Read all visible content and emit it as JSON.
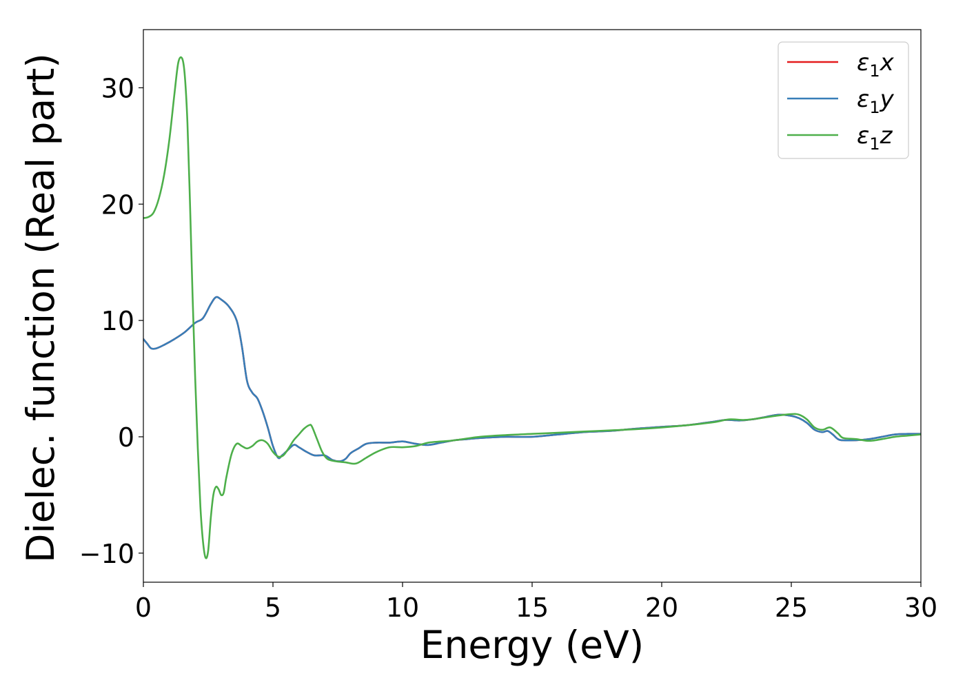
{
  "chart_data": {
    "type": "line",
    "title": "",
    "xlabel": "Energy (eV)",
    "ylabel": "Dielec. function (Real part)",
    "xlim": [
      0,
      30
    ],
    "ylim": [
      -12.5,
      35
    ],
    "xticks": [
      0,
      5,
      10,
      15,
      20,
      25,
      30
    ],
    "xtick_labels": [
      "0",
      "5",
      "10",
      "15",
      "20",
      "25",
      "30"
    ],
    "yticks": [
      -10,
      0,
      10,
      20,
      30
    ],
    "ytick_labels": [
      "−10",
      "0",
      "10",
      "20",
      "30"
    ],
    "grid": false,
    "legend_position": "top-right",
    "series": [
      {
        "name": "ε₁x",
        "label_main": "ε",
        "label_sub": "1",
        "label_var": "x",
        "color": "#e41a1c",
        "x": [
          0,
          0.15,
          0.3,
          0.5,
          0.8,
          1.2,
          1.6,
          2.0,
          2.3,
          2.6,
          2.8,
          3.0,
          3.3,
          3.6,
          3.8,
          4.0,
          4.2,
          4.4,
          4.6,
          4.8,
          5.0,
          5.2,
          5.35,
          5.5,
          5.8,
          6.0,
          6.3,
          6.6,
          7.0,
          7.3,
          7.6,
          7.8,
          8.0,
          8.3,
          8.6,
          9.0,
          9.5,
          10.0,
          10.5,
          11.0,
          11.5,
          12.0,
          12.5,
          13.0,
          14.0,
          15.0,
          16.0,
          17.0,
          18.0,
          19.0,
          20.0,
          21.0,
          22.0,
          22.5,
          23.0,
          23.5,
          24.0,
          24.5,
          25.0,
          25.3,
          25.6,
          25.9,
          26.2,
          26.4,
          26.6,
          26.8,
          27.0,
          27.5,
          28.0,
          28.5,
          29.0,
          29.5,
          30.0
        ],
        "y": [
          8.4,
          8.0,
          7.6,
          7.6,
          7.9,
          8.4,
          9.0,
          9.8,
          10.2,
          11.4,
          12.0,
          11.8,
          11.2,
          10.0,
          7.8,
          4.8,
          3.8,
          3.3,
          2.2,
          0.8,
          -0.8,
          -1.8,
          -1.6,
          -1.3,
          -0.7,
          -0.9,
          -1.3,
          -1.6,
          -1.6,
          -2.0,
          -2.1,
          -1.9,
          -1.4,
          -1.0,
          -0.6,
          -0.5,
          -0.5,
          -0.4,
          -0.6,
          -0.7,
          -0.5,
          -0.3,
          -0.2,
          -0.1,
          0.0,
          0.0,
          0.2,
          0.4,
          0.5,
          0.7,
          0.85,
          1.0,
          1.3,
          1.45,
          1.4,
          1.5,
          1.7,
          1.9,
          1.8,
          1.6,
          1.2,
          0.6,
          0.4,
          0.5,
          0.2,
          -0.2,
          -0.3,
          -0.3,
          -0.2,
          0.0,
          0.2,
          0.25,
          0.25
        ]
      },
      {
        "name": "ε₁y",
        "label_main": "ε",
        "label_sub": "1",
        "label_var": "y",
        "color": "#377eb8",
        "x": [
          0,
          0.15,
          0.3,
          0.5,
          0.8,
          1.2,
          1.6,
          2.0,
          2.3,
          2.6,
          2.8,
          3.0,
          3.3,
          3.6,
          3.8,
          4.0,
          4.2,
          4.4,
          4.6,
          4.8,
          5.0,
          5.2,
          5.35,
          5.5,
          5.8,
          6.0,
          6.3,
          6.6,
          7.0,
          7.3,
          7.6,
          7.8,
          8.0,
          8.3,
          8.6,
          9.0,
          9.5,
          10.0,
          10.5,
          11.0,
          11.5,
          12.0,
          12.5,
          13.0,
          14.0,
          15.0,
          16.0,
          17.0,
          18.0,
          19.0,
          20.0,
          21.0,
          22.0,
          22.5,
          23.0,
          23.5,
          24.0,
          24.5,
          25.0,
          25.3,
          25.6,
          25.9,
          26.2,
          26.4,
          26.6,
          26.8,
          27.0,
          27.5,
          28.0,
          28.5,
          29.0,
          29.5,
          30.0
        ],
        "y": [
          8.4,
          8.0,
          7.6,
          7.6,
          7.9,
          8.4,
          9.0,
          9.8,
          10.2,
          11.4,
          12.0,
          11.8,
          11.2,
          10.0,
          7.8,
          4.8,
          3.8,
          3.3,
          2.2,
          0.8,
          -0.8,
          -1.8,
          -1.6,
          -1.3,
          -0.7,
          -0.9,
          -1.3,
          -1.6,
          -1.6,
          -2.0,
          -2.1,
          -1.9,
          -1.4,
          -1.0,
          -0.6,
          -0.5,
          -0.5,
          -0.4,
          -0.6,
          -0.7,
          -0.5,
          -0.3,
          -0.2,
          -0.1,
          0.0,
          0.0,
          0.2,
          0.4,
          0.5,
          0.7,
          0.85,
          1.0,
          1.3,
          1.45,
          1.4,
          1.5,
          1.7,
          1.9,
          1.8,
          1.6,
          1.2,
          0.6,
          0.4,
          0.5,
          0.2,
          -0.2,
          -0.3,
          -0.3,
          -0.2,
          0.0,
          0.2,
          0.25,
          0.25
        ]
      },
      {
        "name": "ε₁z",
        "label_main": "ε",
        "label_sub": "1",
        "label_var": "z",
        "color": "#4daf4a",
        "x": [
          0,
          0.2,
          0.4,
          0.6,
          0.8,
          1.0,
          1.2,
          1.35,
          1.5,
          1.6,
          1.7,
          1.8,
          1.9,
          2.0,
          2.1,
          2.2,
          2.3,
          2.4,
          2.5,
          2.6,
          2.7,
          2.8,
          2.9,
          3.0,
          3.1,
          3.2,
          3.4,
          3.6,
          3.8,
          4.0,
          4.2,
          4.4,
          4.6,
          4.8,
          5.0,
          5.2,
          5.4,
          5.6,
          5.8,
          6.0,
          6.2,
          6.4,
          6.5,
          6.7,
          6.9,
          7.1,
          7.4,
          7.8,
          8.2,
          8.6,
          9.0,
          9.5,
          10.0,
          10.5,
          11.0,
          11.5,
          12.0,
          13.0,
          14.0,
          15.0,
          16.0,
          17.0,
          18.0,
          19.0,
          20.0,
          21.0,
          22.0,
          22.6,
          23.2,
          23.8,
          24.4,
          25.0,
          25.3,
          25.6,
          25.9,
          26.2,
          26.5,
          26.8,
          27.0,
          27.5,
          28.0,
          28.5,
          29.0,
          29.5,
          30.0
        ],
        "y": [
          18.8,
          18.9,
          19.3,
          20.5,
          22.5,
          25.5,
          29.5,
          32.2,
          32.5,
          31.0,
          27.0,
          20.0,
          12.0,
          5.0,
          -1.0,
          -6.0,
          -9.0,
          -10.4,
          -9.8,
          -7.0,
          -5.0,
          -4.3,
          -4.5,
          -5.0,
          -4.8,
          -3.5,
          -1.5,
          -0.6,
          -0.8,
          -1.0,
          -0.8,
          -0.4,
          -0.3,
          -0.6,
          -1.3,
          -1.7,
          -1.6,
          -1.0,
          -0.3,
          0.2,
          0.7,
          1.0,
          0.9,
          -0.2,
          -1.3,
          -1.9,
          -2.1,
          -2.2,
          -2.3,
          -1.8,
          -1.3,
          -0.9,
          -0.9,
          -0.8,
          -0.5,
          -0.4,
          -0.3,
          0.0,
          0.15,
          0.25,
          0.35,
          0.45,
          0.55,
          0.65,
          0.8,
          1.0,
          1.25,
          1.5,
          1.45,
          1.6,
          1.8,
          1.95,
          1.9,
          1.5,
          0.8,
          0.6,
          0.8,
          0.3,
          -0.1,
          -0.2,
          -0.35,
          -0.2,
          0.0,
          0.1,
          0.2
        ]
      }
    ]
  }
}
